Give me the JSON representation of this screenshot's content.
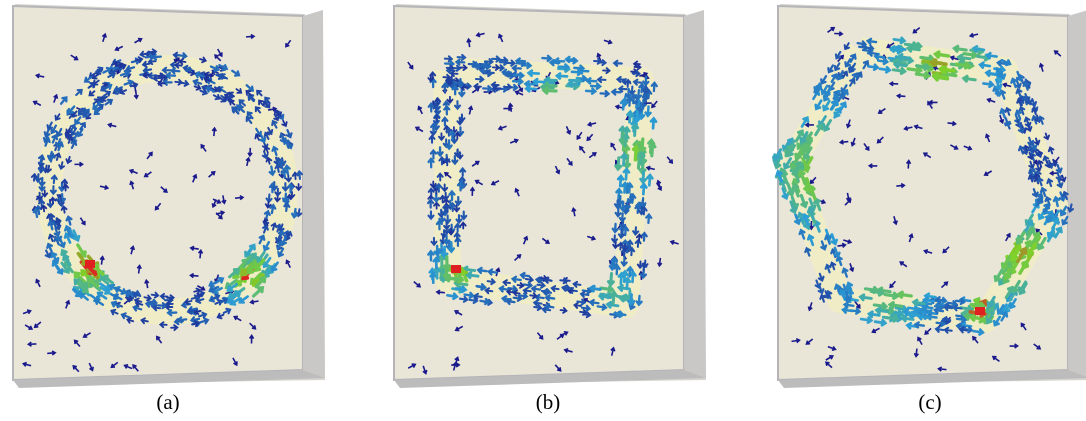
{
  "figure": {
    "panels": [
      {
        "caption": "(a)",
        "ring_shape": "circle"
      },
      {
        "caption": "(b)",
        "ring_shape": "square"
      },
      {
        "caption": "(c)",
        "ring_shape": "hexagon"
      }
    ]
  },
  "colors": {
    "background": "#e3e0d6",
    "slab_face": "#e9e6d8",
    "slab_edge": "#b5b4b8",
    "ring_trace": "#efecc6",
    "vector_low": "#1a1a8c",
    "vector_mid": "#2c9fd6",
    "vector_high": "#7fd12a",
    "vector_peak": "#e02020"
  }
}
